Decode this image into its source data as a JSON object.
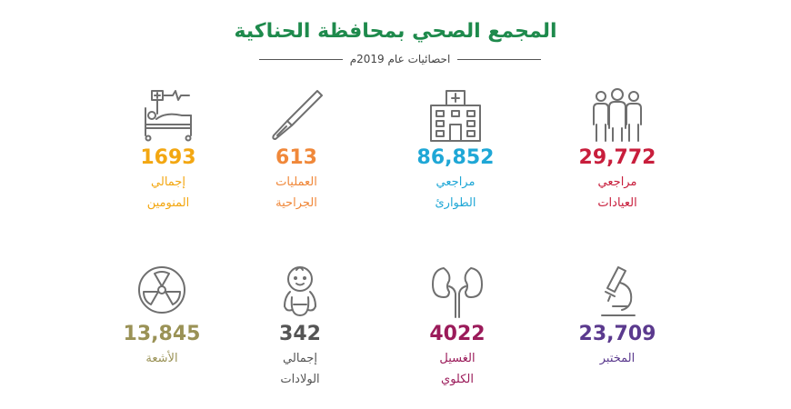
{
  "header": {
    "title": "المجمع الصحي بمحافظة الحناكية",
    "subtitle": "احصائيات عام 2019م"
  },
  "stats": [
    {
      "value": "29,772",
      "label1": "مراجعي",
      "label2": "العيادات",
      "color": "#c81e3c",
      "icon": "people-icon"
    },
    {
      "value": "86,852",
      "label1": "مراجعي",
      "label2": "الطوارئ",
      "color": "#1fa7d6",
      "icon": "hospital-building-icon"
    },
    {
      "value": "613",
      "label1": "العمليات",
      "label2": "الجراحية",
      "color": "#f0883a",
      "icon": "scalpel-icon"
    },
    {
      "value": "1693",
      "label1": "إجمالي",
      "label2": "المنومين",
      "color": "#f3a712",
      "icon": "hospital-bed-icon"
    },
    {
      "value": "23,709",
      "label1": "المختبر",
      "label2": "",
      "color": "#5b3a8e",
      "icon": "microscope-icon"
    },
    {
      "value": "4022",
      "label1": "الغسيل",
      "label2": "الكلوي",
      "color": "#9b1b5a",
      "icon": "kidneys-icon"
    },
    {
      "value": "342",
      "label1": "إجمالي",
      "label2": "الولادات",
      "color": "#555555",
      "icon": "baby-icon"
    },
    {
      "value": "13,845",
      "label1": "الأشعة",
      "label2": "",
      "color": "#9a9256",
      "icon": "radiation-icon"
    }
  ]
}
